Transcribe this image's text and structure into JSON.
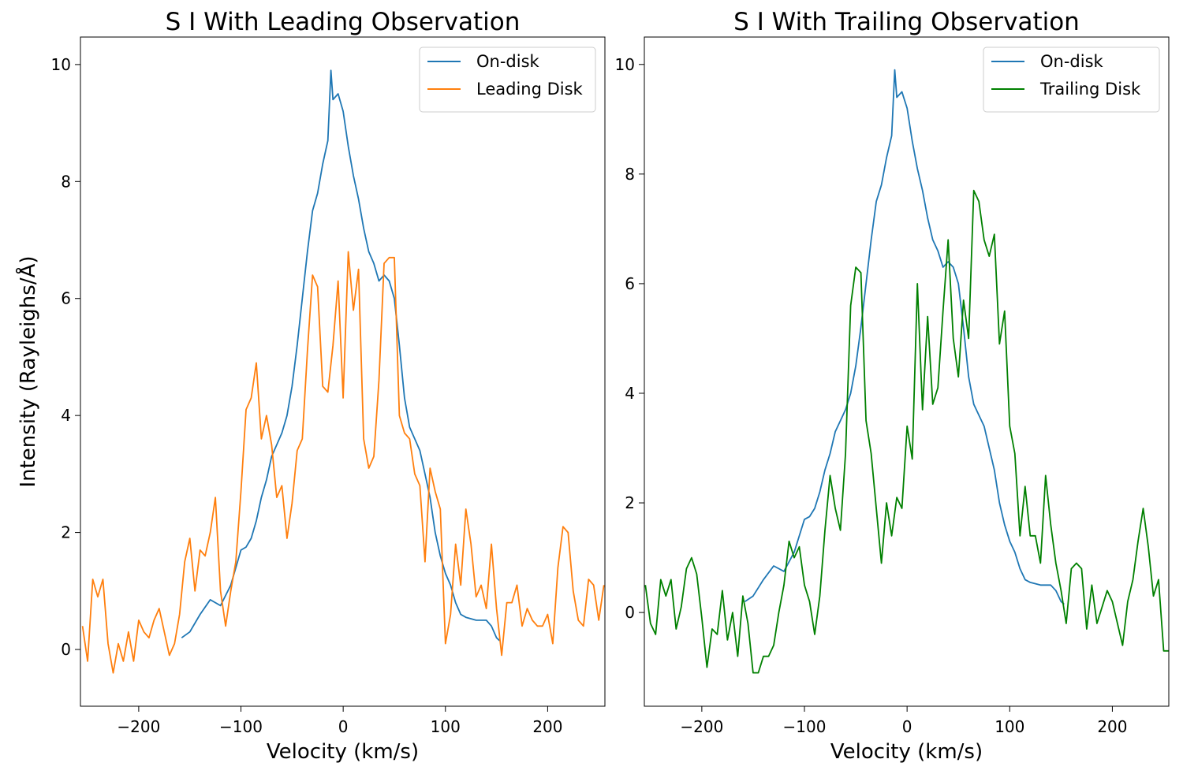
{
  "chart_data": [
    {
      "type": "line",
      "title": "S I With Leading Observation",
      "xlabel": "Velocity (km/s)",
      "ylabel": "Intensity (Rayleighs/Å)",
      "xlim": [
        -257,
        256
      ],
      "ylim": [
        -0.97,
        10.47
      ],
      "xticks": [
        {
          "value": -200,
          "label": "−200"
        },
        {
          "value": -100,
          "label": "−100"
        },
        0,
        100,
        200
      ],
      "yticks": [
        0,
        2,
        4,
        6,
        8,
        10
      ],
      "legend": "upper right",
      "series": [
        {
          "name": "On-disk",
          "color": "#1f77b4",
          "x": [
            -158,
            -150,
            -140,
            -130,
            -120,
            -110,
            -100,
            -95,
            -90,
            -85,
            -80,
            -75,
            -70,
            -65,
            -60,
            -55,
            -50,
            -45,
            -40,
            -35,
            -30,
            -25,
            -20,
            -15,
            -12,
            -10,
            -5,
            0,
            5,
            10,
            15,
            20,
            25,
            30,
            35,
            40,
            45,
            50,
            55,
            60,
            65,
            70,
            75,
            80,
            85,
            90,
            95,
            100,
            105,
            110,
            115,
            120,
            130,
            140,
            145,
            150,
            153
          ],
          "values": [
            0.2,
            0.3,
            0.6,
            0.85,
            0.75,
            1.1,
            1.7,
            1.75,
            1.9,
            2.2,
            2.6,
            2.9,
            3.3,
            3.5,
            3.7,
            4.0,
            4.5,
            5.2,
            6.0,
            6.8,
            7.5,
            7.8,
            8.3,
            8.7,
            9.9,
            9.4,
            9.5,
            9.2,
            8.6,
            8.1,
            7.7,
            7.2,
            6.8,
            6.6,
            6.3,
            6.4,
            6.3,
            6.0,
            5.2,
            4.3,
            3.8,
            3.6,
            3.4,
            3.0,
            2.6,
            2.0,
            1.6,
            1.3,
            1.1,
            0.8,
            0.6,
            0.55,
            0.5,
            0.5,
            0.4,
            0.2,
            0.15
          ]
        },
        {
          "name": "Leading Disk",
          "color": "#ff7f0e",
          "x": [
            -255,
            -250,
            -245,
            -240,
            -235,
            -230,
            -225,
            -220,
            -215,
            -210,
            -205,
            -200,
            -195,
            -190,
            -185,
            -180,
            -175,
            -170,
            -165,
            -160,
            -155,
            -150,
            -145,
            -140,
            -135,
            -130,
            -125,
            -120,
            -115,
            -110,
            -105,
            -100,
            -95,
            -90,
            -85,
            -80,
            -75,
            -70,
            -65,
            -60,
            -55,
            -50,
            -45,
            -40,
            -35,
            -30,
            -25,
            -20,
            -15,
            -10,
            -5,
            0,
            5,
            10,
            15,
            20,
            25,
            30,
            35,
            40,
            45,
            50,
            55,
            60,
            65,
            70,
            75,
            80,
            85,
            90,
            95,
            100,
            105,
            110,
            115,
            120,
            125,
            130,
            135,
            140,
            145,
            150,
            155,
            160,
            165,
            170,
            175,
            180,
            185,
            190,
            195,
            200,
            205,
            210,
            215,
            220,
            225,
            230,
            235,
            240,
            245,
            250,
            255
          ],
          "values": [
            0.4,
            -0.2,
            1.2,
            0.9,
            1.2,
            0.1,
            -0.4,
            0.1,
            -0.2,
            0.3,
            -0.2,
            0.5,
            0.3,
            0.2,
            0.5,
            0.7,
            0.3,
            -0.1,
            0.1,
            0.6,
            1.5,
            1.9,
            1.0,
            1.7,
            1.6,
            2.0,
            2.6,
            1.0,
            0.4,
            1.0,
            1.5,
            2.7,
            4.1,
            4.3,
            4.9,
            3.6,
            4.0,
            3.5,
            2.6,
            2.8,
            1.9,
            2.5,
            3.4,
            3.6,
            5.1,
            6.4,
            6.2,
            4.5,
            4.4,
            5.2,
            6.3,
            4.3,
            6.8,
            5.8,
            6.5,
            3.6,
            3.1,
            3.3,
            4.6,
            6.6,
            6.7,
            6.7,
            4.0,
            3.7,
            3.6,
            3.0,
            2.8,
            1.5,
            3.1,
            2.7,
            2.4,
            0.1,
            0.6,
            1.8,
            1.1,
            2.4,
            1.8,
            0.9,
            1.1,
            0.7,
            1.8,
            0.7,
            -0.1,
            0.8,
            0.8,
            1.1,
            0.4,
            0.7,
            0.5,
            0.4,
            0.4,
            0.6,
            0.1,
            1.4,
            2.1,
            2.0,
            1.0,
            0.5,
            0.4,
            1.2,
            1.1,
            0.5,
            1.1
          ]
        }
      ]
    },
    {
      "type": "line",
      "title": "S I With Trailing Observation",
      "xlabel": "Velocity (km/s)",
      "xlim": [
        -256,
        255
      ],
      "ylim": [
        -1.71,
        10.5
      ],
      "xticks": [
        {
          "value": -200,
          "label": "−200"
        },
        {
          "value": -100,
          "label": "−100"
        },
        0,
        100,
        200
      ],
      "yticks": [
        0,
        2,
        4,
        6,
        8,
        10
      ],
      "legend": "upper right",
      "series": [
        {
          "name": "On-disk",
          "color": "#1f77b4",
          "x": [
            -158,
            -150,
            -140,
            -130,
            -120,
            -110,
            -100,
            -95,
            -90,
            -85,
            -80,
            -75,
            -70,
            -65,
            -60,
            -55,
            -50,
            -45,
            -40,
            -35,
            -30,
            -25,
            -20,
            -15,
            -12,
            -10,
            -5,
            0,
            5,
            10,
            15,
            20,
            25,
            30,
            35,
            40,
            45,
            50,
            55,
            60,
            65,
            70,
            75,
            80,
            85,
            90,
            95,
            100,
            105,
            110,
            115,
            120,
            130,
            140,
            145,
            150,
            153
          ],
          "values": [
            0.2,
            0.3,
            0.6,
            0.85,
            0.75,
            1.1,
            1.7,
            1.75,
            1.9,
            2.2,
            2.6,
            2.9,
            3.3,
            3.5,
            3.7,
            4.0,
            4.5,
            5.2,
            6.0,
            6.8,
            7.5,
            7.8,
            8.3,
            8.7,
            9.9,
            9.4,
            9.5,
            9.2,
            8.6,
            8.1,
            7.7,
            7.2,
            6.8,
            6.6,
            6.3,
            6.4,
            6.3,
            6.0,
            5.2,
            4.3,
            3.8,
            3.6,
            3.4,
            3.0,
            2.6,
            2.0,
            1.6,
            1.3,
            1.1,
            0.8,
            0.6,
            0.55,
            0.5,
            0.5,
            0.4,
            0.2,
            0.15
          ]
        },
        {
          "name": "Trailing Disk",
          "color": "#008000",
          "x": [
            -255,
            -250,
            -245,
            -240,
            -235,
            -230,
            -225,
            -220,
            -215,
            -210,
            -205,
            -200,
            -195,
            -190,
            -185,
            -180,
            -175,
            -170,
            -165,
            -160,
            -155,
            -150,
            -145,
            -140,
            -135,
            -130,
            -125,
            -120,
            -115,
            -110,
            -105,
            -100,
            -95,
            -90,
            -85,
            -80,
            -75,
            -70,
            -65,
            -60,
            -55,
            -50,
            -45,
            -40,
            -35,
            -30,
            -25,
            -20,
            -15,
            -10,
            -5,
            0,
            5,
            10,
            15,
            20,
            25,
            30,
            35,
            40,
            45,
            50,
            55,
            60,
            65,
            70,
            75,
            80,
            85,
            90,
            95,
            100,
            105,
            110,
            115,
            120,
            125,
            130,
            135,
            140,
            145,
            150,
            155,
            160,
            165,
            170,
            175,
            180,
            185,
            190,
            195,
            200,
            205,
            210,
            215,
            220,
            225,
            230,
            235,
            240,
            245,
            250,
            255
          ],
          "values": [
            0.5,
            -0.2,
            -0.4,
            0.6,
            0.3,
            0.6,
            -0.3,
            0.1,
            0.8,
            1.0,
            0.7,
            -0.1,
            -1.0,
            -0.3,
            -0.4,
            0.4,
            -0.5,
            0.0,
            -0.8,
            0.3,
            -0.2,
            -1.1,
            -1.1,
            -0.8,
            -0.8,
            -0.6,
            0.0,
            0.5,
            1.3,
            1.0,
            1.2,
            0.5,
            0.2,
            -0.4,
            0.3,
            1.5,
            2.5,
            1.9,
            1.5,
            2.9,
            5.6,
            6.3,
            6.2,
            3.5,
            2.9,
            1.9,
            0.9,
            2.0,
            1.4,
            2.1,
            1.9,
            3.4,
            2.8,
            6.0,
            3.7,
            5.4,
            3.8,
            4.1,
            5.5,
            6.8,
            5.0,
            4.3,
            5.7,
            5.0,
            7.7,
            7.5,
            6.8,
            6.5,
            6.9,
            4.9,
            5.5,
            3.4,
            2.9,
            1.4,
            2.3,
            1.4,
            1.4,
            0.9,
            2.5,
            1.6,
            0.9,
            0.4,
            -0.2,
            0.8,
            0.9,
            0.8,
            -0.3,
            0.5,
            -0.2,
            0.1,
            0.4,
            0.2,
            -0.2,
            -0.6,
            0.2,
            0.6,
            1.3,
            1.9,
            1.2,
            0.3,
            0.6,
            -0.7,
            -0.7
          ]
        }
      ]
    }
  ]
}
